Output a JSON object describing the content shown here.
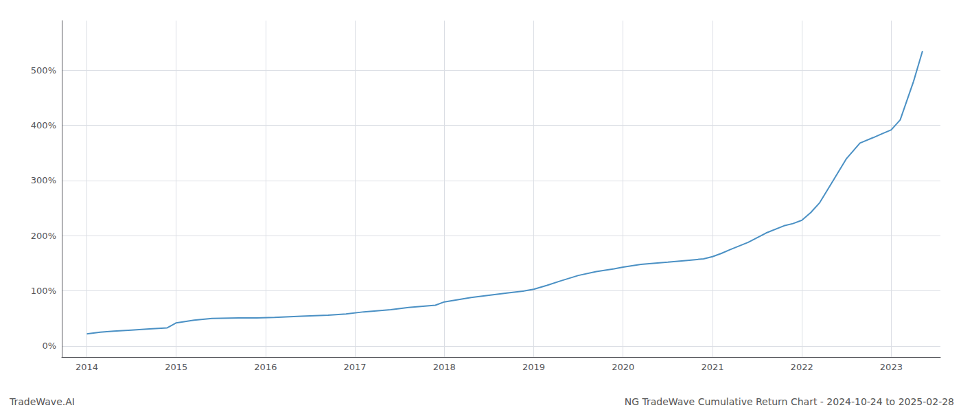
{
  "chart_data": {
    "type": "line",
    "annotations": [
      "TradeWave.AI",
      "NG TradeWave Cumulative Return Chart - 2024-10-24 to 2025-02-28"
    ],
    "x": [
      2014.0,
      2014.15,
      2014.3,
      2014.5,
      2014.7,
      2014.9,
      2015.0,
      2015.2,
      2015.4,
      2015.7,
      2015.9,
      2016.1,
      2016.4,
      2016.7,
      2016.9,
      2017.1,
      2017.4,
      2017.6,
      2017.9,
      2018.0,
      2018.15,
      2018.3,
      2018.5,
      2018.7,
      2018.9,
      2019.0,
      2019.15,
      2019.3,
      2019.5,
      2019.7,
      2019.9,
      2020.0,
      2020.2,
      2020.5,
      2020.7,
      2020.9,
      2021.0,
      2021.1,
      2021.2,
      2021.4,
      2021.6,
      2021.8,
      2021.9,
      2022.0,
      2022.1,
      2022.2,
      2022.35,
      2022.5,
      2022.65,
      2022.8,
      2022.9,
      2023.0,
      2023.1,
      2023.25,
      2023.35
    ],
    "values": [
      22,
      25,
      27,
      29,
      31,
      33,
      42,
      47,
      50,
      51,
      51,
      52,
      54,
      56,
      58,
      62,
      66,
      70,
      74,
      80,
      84,
      88,
      92,
      96,
      100,
      103,
      110,
      118,
      128,
      135,
      140,
      143,
      148,
      152,
      155,
      158,
      162,
      168,
      175,
      188,
      205,
      218,
      222,
      228,
      242,
      260,
      300,
      340,
      368,
      378,
      385,
      392,
      410,
      480,
      535
    ],
    "color": "#4a90c4",
    "xlim": [
      2013.72,
      2023.55
    ],
    "xticks": [
      2014,
      2015,
      2016,
      2017,
      2018,
      2019,
      2020,
      2021,
      2022,
      2023
    ],
    "ylim": [
      -20,
      590
    ],
    "yticks": [
      {
        "value": 0,
        "label": "0%"
      },
      {
        "value": 100,
        "label": "100%"
      },
      {
        "value": 200,
        "label": "200%"
      },
      {
        "value": 300,
        "label": "300%"
      },
      {
        "value": 400,
        "label": "400%"
      },
      {
        "value": 500,
        "label": "500%"
      }
    ],
    "grid": true
  }
}
